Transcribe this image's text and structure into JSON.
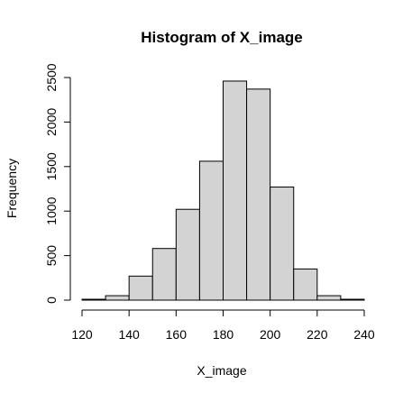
{
  "chart_data": {
    "type": "bar",
    "title": "Histogram of X_image",
    "xlabel": "X_image",
    "ylabel": "Frequency",
    "bins": [
      {
        "x0": 120,
        "x1": 130,
        "count": 10
      },
      {
        "x0": 130,
        "x1": 140,
        "count": 50
      },
      {
        "x0": 140,
        "x1": 150,
        "count": 270
      },
      {
        "x0": 150,
        "x1": 160,
        "count": 580
      },
      {
        "x0": 160,
        "x1": 170,
        "count": 1020
      },
      {
        "x0": 170,
        "x1": 180,
        "count": 1560
      },
      {
        "x0": 180,
        "x1": 190,
        "count": 2460
      },
      {
        "x0": 190,
        "x1": 200,
        "count": 2370
      },
      {
        "x0": 200,
        "x1": 210,
        "count": 1270
      },
      {
        "x0": 210,
        "x1": 220,
        "count": 350
      },
      {
        "x0": 220,
        "x1": 230,
        "count": 50
      },
      {
        "x0": 230,
        "x1": 240,
        "count": 10
      }
    ],
    "xlim": [
      120,
      240
    ],
    "ylim": [
      0,
      2500
    ],
    "xticks": [
      120,
      140,
      160,
      180,
      200,
      220,
      240
    ],
    "yticks": [
      0,
      500,
      1000,
      1500,
      2000,
      2500
    ],
    "bar_fill": "#d3d3d3",
    "bar_stroke": "#000000",
    "grid": false,
    "legend": "none"
  }
}
